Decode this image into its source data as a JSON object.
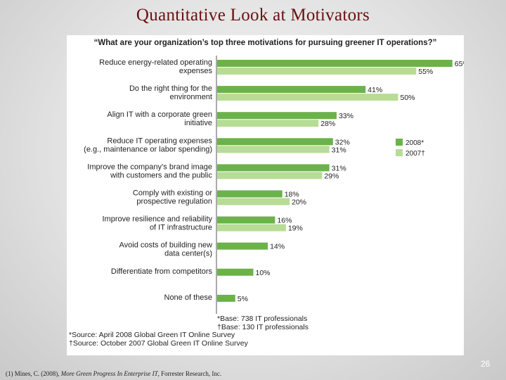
{
  "slide": {
    "title": "Quantitative Look at Motivators",
    "page_number": "26",
    "reference_prefix": "(1) Mines, C. (2008), ",
    "reference_title": "More Green Progress In Enterprise IT",
    "reference_suffix": ", Forrester Research, Inc."
  },
  "chart_data": {
    "type": "bar",
    "orientation": "horizontal",
    "title": "“What are your organization’s top three motivations for pursuing greener IT operations?”",
    "categories": [
      [
        "Reduce energy-related operating",
        "expenses"
      ],
      [
        "Do the right thing for the",
        "environment"
      ],
      [
        "Align IT with a corporate green",
        "initiative"
      ],
      [
        "Reduce IT operating expenses",
        "(e.g., maintenance or labor spending)"
      ],
      [
        "Improve the company’s brand image",
        "with customers and the public"
      ],
      [
        "Comply with existing or",
        "prospective regulation"
      ],
      [
        "Improve resilience and reliability",
        "of IT infrastructure"
      ],
      [
        "Avoid costs of building new",
        "data center(s)"
      ],
      [
        "Differentiate from competitors"
      ],
      [
        "None of these"
      ]
    ],
    "series": [
      {
        "name": "2008*",
        "color": "#6bb24b",
        "values": [
          65,
          41,
          33,
          32,
          31,
          18,
          16,
          14,
          10,
          5
        ]
      },
      {
        "name": "2007†",
        "color": "#b7dc96",
        "values": [
          55,
          50,
          28,
          31,
          29,
          20,
          19,
          null,
          null,
          null
        ]
      }
    ],
    "value_suffix": "%",
    "legend_position": "right",
    "grid": false,
    "notes": {
      "base": [
        "*Base: 738 IT professionals",
        "†Base: 130 IT professionals"
      ],
      "source": [
        "*Source: April 2008 Global Green IT Online Survey",
        "†Source: October 2007 Global Green IT Online Survey"
      ]
    }
  }
}
